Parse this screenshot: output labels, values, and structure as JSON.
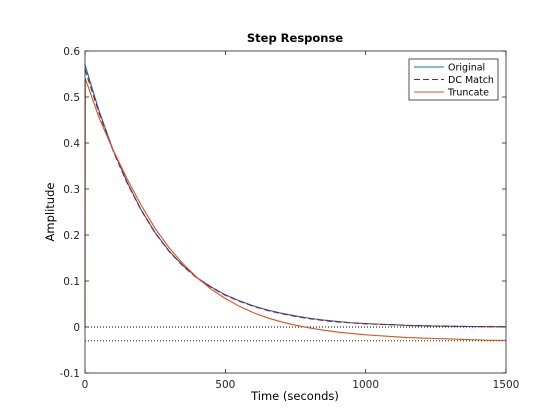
{
  "chart_data": {
    "type": "line",
    "title": "Step Response",
    "xlabel": "Time (seconds)",
    "ylabel": "Amplitude",
    "xlim": [
      0,
      1500
    ],
    "ylim": [
      -0.1,
      0.6
    ],
    "xticks": [
      0,
      500,
      1000,
      1500
    ],
    "xtick_labels": [
      "0",
      "500",
      "1000",
      "1500"
    ],
    "yticks": [
      -0.1,
      0,
      0.1,
      0.2,
      0.3,
      0.4,
      0.5,
      0.6
    ],
    "ytick_labels": [
      "-0.1",
      "0",
      "0.1",
      "0.2",
      "0.3",
      "0.4",
      "0.5",
      "0.6"
    ],
    "grid": false,
    "legend_position": "top-right",
    "reference_lines": [
      0,
      -0.03
    ],
    "series": [
      {
        "name": "Original",
        "color": "#0072BD",
        "style": "solid",
        "x": [
          0,
          50,
          100,
          150,
          200,
          250,
          300,
          350,
          400,
          450,
          500,
          550,
          600,
          650,
          700,
          750,
          800,
          850,
          900,
          950,
          1000,
          1050,
          1100,
          1150,
          1200,
          1250,
          1300,
          1350,
          1400,
          1450,
          1500
        ],
        "values": [
          0.57,
          0.47,
          0.385,
          0.315,
          0.255,
          0.205,
          0.165,
          0.133,
          0.107,
          0.087,
          0.07,
          0.057,
          0.046,
          0.037,
          0.03,
          0.024,
          0.019,
          0.015,
          0.012,
          0.009,
          0.0075,
          0.006,
          0.005,
          0.0035,
          0.0028,
          0.0022,
          0.0017,
          0.0013,
          0.001,
          0.0007,
          0.0005
        ]
      },
      {
        "name": "DC Match",
        "color": "#A2142F",
        "style": "dashed",
        "x": [
          0,
          50,
          100,
          150,
          200,
          250,
          300,
          350,
          400,
          450,
          500,
          550,
          600,
          650,
          700,
          750,
          800,
          850,
          900,
          950,
          1000,
          1050,
          1100,
          1150,
          1200,
          1250,
          1300,
          1350,
          1400,
          1450,
          1500
        ],
        "values": [
          0.56,
          0.465,
          0.383,
          0.313,
          0.254,
          0.204,
          0.164,
          0.132,
          0.106,
          0.086,
          0.069,
          0.056,
          0.045,
          0.036,
          0.029,
          0.023,
          0.018,
          0.014,
          0.011,
          0.009,
          0.007,
          0.0058,
          0.0047,
          0.0035,
          0.0027,
          0.0021,
          0.0016,
          0.0012,
          0.0009,
          0.0007,
          0.0005
        ]
      },
      {
        "name": "Truncate",
        "color": "#D95319",
        "style": "solid",
        "x": [
          0,
          1,
          50,
          100,
          150,
          200,
          250,
          300,
          350,
          400,
          450,
          500,
          550,
          600,
          650,
          700,
          750,
          800,
          850,
          900,
          950,
          1000,
          1050,
          1100,
          1150,
          1200,
          1250,
          1300,
          1350,
          1400,
          1450,
          1500
        ],
        "values": [
          0.0,
          0.54,
          0.455,
          0.385,
          0.322,
          0.265,
          0.214,
          0.172,
          0.137,
          0.107,
          0.082,
          0.062,
          0.045,
          0.031,
          0.02,
          0.011,
          0.004,
          -0.002,
          -0.007,
          -0.011,
          -0.014,
          -0.017,
          -0.019,
          -0.021,
          -0.023,
          -0.024,
          -0.025,
          -0.026,
          -0.027,
          -0.028,
          -0.029,
          -0.029
        ]
      }
    ]
  }
}
